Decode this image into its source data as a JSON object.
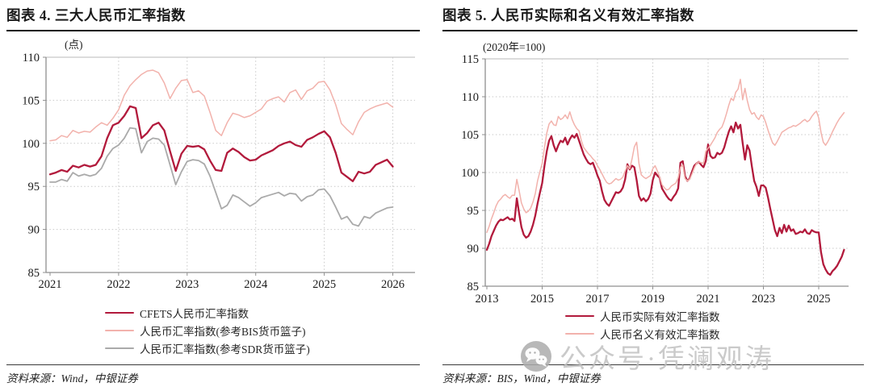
{
  "sources": {
    "left": "资料来源：Wind，中银证券",
    "right": "资料来源：BIS，Wind，中银证券"
  },
  "watermark": {
    "icon": "wechat-icon",
    "text": "公众号·凭澜观涛",
    "color": "#bfbfbf"
  },
  "chart_data": [
    {
      "type": "line",
      "title": "图表 4. 三大人民币汇率指数",
      "unit_label": "(点)",
      "xlabel": "",
      "ylabel": "(点)",
      "ylim": [
        85,
        110
      ],
      "yticks": [
        85,
        90,
        95,
        100,
        105,
        110
      ],
      "xticks": [
        "2021",
        "2022",
        "2023",
        "2024",
        "2025",
        "2026"
      ],
      "x_start": "2021-01",
      "x_step_months": 1,
      "grid": "dotted",
      "legend_position": "bottom",
      "series": [
        {
          "name": "CFETS人民币汇率指数",
          "color": "#B21A3C",
          "width": 2.3,
          "values": [
            96.4,
            96.6,
            96.9,
            96.7,
            97.4,
            97.2,
            97.5,
            97.3,
            97.5,
            98.5,
            100.6,
            102.1,
            102.4,
            103.2,
            104.3,
            104.1,
            100.6,
            101.2,
            102.1,
            102.4,
            101.5,
            99.1,
            96.8,
            98.8,
            99.7,
            99.6,
            99.7,
            99.3,
            98.0,
            96.9,
            96.8,
            98.9,
            99.4,
            99.0,
            98.4,
            98.0,
            98.1,
            98.6,
            98.9,
            99.2,
            99.7,
            100.0,
            100.2,
            99.8,
            99.6,
            100.4,
            100.7,
            101.1,
            101.4,
            100.7,
            98.9,
            96.6,
            96.1,
            95.6,
            96.7,
            96.5,
            96.7,
            97.5,
            97.8,
            98.1,
            97.3
          ]
        },
        {
          "name": "人民币汇率指数(参考BIS货币篮子)",
          "color": "#F2B2AC",
          "width": 1.5,
          "values": [
            100.3,
            100.4,
            100.9,
            100.7,
            101.5,
            101.2,
            101.4,
            101.3,
            101.9,
            102.4,
            102.1,
            102.9,
            103.9,
            105.6,
            106.7,
            107.4,
            108.0,
            108.4,
            108.5,
            108.2,
            107.0,
            105.2,
            106.4,
            107.3,
            107.4,
            105.9,
            106.1,
            105.5,
            103.6,
            101.5,
            100.9,
            102.4,
            103.5,
            103.3,
            103.0,
            103.2,
            103.6,
            104.0,
            104.9,
            105.2,
            105.4,
            104.8,
            105.9,
            106.2,
            105.1,
            106.1,
            106.4,
            107.1,
            107.2,
            106.2,
            104.5,
            102.3,
            101.6,
            101.0,
            102.5,
            103.6,
            104.0,
            104.3,
            104.5,
            104.7,
            104.2
          ]
        },
        {
          "name": "人民币汇率指数(参考SDR货币篮子)",
          "color": "#AAAAAA",
          "width": 1.8,
          "values": [
            95.5,
            95.5,
            95.8,
            95.6,
            96.6,
            96.2,
            96.4,
            96.2,
            96.4,
            97.1,
            98.5,
            99.4,
            99.8,
            100.6,
            101.8,
            101.7,
            98.9,
            100.2,
            100.6,
            100.5,
            99.8,
            97.5,
            95.2,
            96.7,
            97.9,
            98.1,
            98.0,
            97.6,
            96.2,
            94.3,
            92.4,
            92.8,
            94.0,
            93.7,
            93.2,
            92.7,
            93.1,
            93.7,
            93.9,
            94.1,
            94.3,
            93.9,
            94.2,
            94.1,
            93.3,
            93.8,
            94.0,
            94.6,
            94.7,
            93.9,
            92.6,
            91.2,
            91.5,
            90.6,
            90.4,
            91.5,
            91.3,
            91.9,
            92.2,
            92.5,
            92.6
          ]
        }
      ]
    },
    {
      "type": "line",
      "title": "图表 5. 人民币实际和名义有效汇率指数",
      "unit_label": "(2020年=100)",
      "xlabel": "",
      "ylabel": "(2020年=100)",
      "ylim": [
        85,
        115
      ],
      "yticks": [
        85,
        90,
        95,
        100,
        105,
        110,
        115
      ],
      "xticks": [
        "2013",
        "2015",
        "2017",
        "2019",
        "2021",
        "2023",
        "2025"
      ],
      "x_start": "2013-01",
      "x_step_months": 1,
      "grid": "dotted",
      "legend_position": "bottom",
      "series": [
        {
          "name": "人民币实际有效汇率指数",
          "color": "#B21A3C",
          "width": 2.3,
          "values": [
            89.8,
            90.6,
            91.6,
            92.3,
            93.0,
            93.5,
            93.8,
            93.7,
            93.9,
            94.1,
            93.8,
            93.9,
            93.6,
            96.6,
            94.6,
            92.8,
            91.8,
            91.4,
            91.6,
            92.2,
            93.1,
            94.3,
            95.9,
            97.3,
            98.6,
            100.9,
            102.8,
            104.2,
            104.8,
            103.6,
            102.8,
            103.6,
            104.2,
            104.0,
            104.6,
            103.7,
            104.4,
            104.9,
            104.6,
            105.1,
            104.2,
            103.3,
            102.4,
            101.8,
            101.3,
            101.1,
            101.3,
            100.5,
            99.6,
            98.9,
            97.5,
            96.4,
            95.9,
            95.6,
            96.2,
            96.8,
            97.4,
            97.3,
            97.5,
            98.0,
            99.1,
            101.1,
            100.4,
            100.9,
            100.7,
            99.0,
            96.9,
            96.3,
            96.6,
            96.2,
            96.5,
            97.2,
            99.0,
            100.0,
            99.6,
            99.3,
            97.9,
            97.4,
            96.9,
            96.5,
            96.3,
            96.8,
            97.2,
            97.9,
            101.3,
            101.5,
            99.5,
            98.9,
            99.2,
            100.1,
            100.9,
            101.2,
            101.4,
            101.0,
            100.7,
            101.5,
            103.7,
            102.2,
            101.9,
            102.0,
            102.6,
            102.4,
            102.6,
            103.3,
            104.4,
            105.4,
            106.1,
            105.3,
            106.6,
            105.8,
            106.3,
            103.9,
            101.7,
            103.6,
            102.9,
            100.8,
            98.9,
            98.1,
            96.9,
            98.3,
            98.3,
            98.0,
            96.7,
            95.2,
            93.8,
            92.4,
            91.6,
            92.7,
            92.0,
            93.1,
            92.2,
            93.0,
            92.3,
            92.5,
            91.9,
            92.0,
            92.2,
            92.1,
            92.5,
            92.0,
            91.9,
            92.4,
            92.2,
            92.1,
            92.1,
            89.5,
            87.9,
            87.2,
            86.7,
            86.5,
            87.0,
            87.3,
            87.7,
            88.3,
            88.9,
            89.8
          ]
        },
        {
          "name": "人民币名义有效汇率指数",
          "color": "#F2B2AC",
          "width": 1.5,
          "values": [
            92.1,
            92.9,
            93.9,
            94.7,
            95.6,
            96.2,
            96.5,
            96.9,
            97.1,
            96.8,
            96.6,
            97.0,
            97.0,
            99.1,
            97.6,
            96.0,
            95.2,
            94.7,
            94.9,
            95.3,
            96.1,
            97.2,
            98.9,
            100.1,
            101.2,
            103.3,
            105.2,
            106.4,
            106.8,
            106.3,
            106.2,
            107.4,
            107.0,
            107.2,
            107.6,
            107.1,
            108.0,
            107.0,
            106.3,
            105.8,
            105.5,
            104.2,
            103.3,
            102.9,
            102.5,
            102.2,
            101.8,
            101.5,
            100.9,
            100.4,
            99.8,
            99.2,
            98.7,
            98.5,
            98.6,
            98.9,
            99.2,
            99.0,
            99.1,
            99.4,
            100.2,
            100.9,
            100.5,
            101.8,
            103.4,
            104.0,
            101.2,
            99.7,
            99.4,
            99.2,
            99.4,
            99.6,
            100.5,
            100.9,
            100.2,
            99.4,
            98.4,
            98.0,
            97.7,
            97.8,
            98.2,
            98.4,
            98.6,
            99.3,
            100.7,
            101.0,
            99.2,
            98.9,
            99.1,
            99.8,
            100.6,
            101.2,
            101.4,
            101.3,
            101.2,
            102.8,
            103.2,
            103.6,
            104.1,
            104.6,
            105.3,
            105.7,
            106.0,
            106.8,
            107.8,
            108.9,
            109.8,
            109.5,
            110.6,
            111.0,
            112.3,
            109.6,
            111.1,
            109.5,
            108.3,
            107.7,
            107.9,
            107.3,
            107.0,
            107.6,
            107.4,
            106.6,
            105.6,
            104.7,
            103.9,
            103.6,
            104.1,
            104.7,
            105.3,
            105.5,
            105.7,
            105.9,
            106.0,
            106.2,
            106.1,
            106.3,
            106.5,
            106.8,
            107.0,
            106.7,
            106.9,
            107.4,
            107.8,
            108.1,
            107.2,
            105.3,
            104.0,
            103.6,
            104.1,
            104.7,
            105.4,
            106.0,
            106.6,
            107.1,
            107.5,
            107.9
          ]
        }
      ]
    }
  ]
}
